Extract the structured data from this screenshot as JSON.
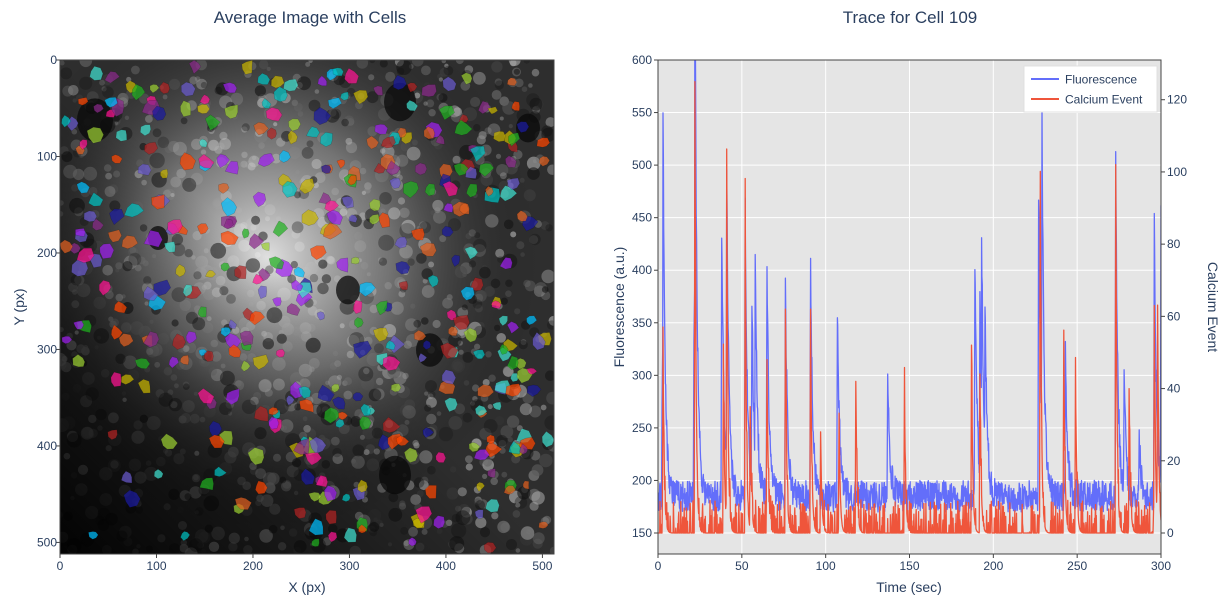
{
  "chart_data": [
    {
      "type": "heatmap",
      "title": "Average Image with Cells",
      "xlabel": "X (px)",
      "ylabel": "Y (px)",
      "xlim": [
        0,
        512
      ],
      "ylim": [
        512,
        0
      ],
      "xticks": [
        0,
        100,
        200,
        300,
        400,
        500
      ],
      "yticks": [
        0,
        100,
        200,
        300,
        400,
        500
      ],
      "colorscale": "grayscale with colored cell ROI overlays",
      "roi_colors": [
        "#a020f0",
        "#00c0c0",
        "#1a1aa0",
        "#ff1493",
        "#20b020",
        "#e06020",
        "#c8b400",
        "#9acd32",
        "#8b2a8b",
        "#b22222",
        "#00bfff",
        "#40e0d0",
        "#6a5acd",
        "#ff4500"
      ]
    },
    {
      "type": "line",
      "title": "Trace for Cell 109",
      "xlabel": "Time (sec)",
      "ylabel": "Fluorescence (a.u.)",
      "y2label": "Calcium Event",
      "xlim": [
        0,
        300
      ],
      "ylim": [
        150,
        600
      ],
      "y2lim": [
        0,
        131
      ],
      "xticks": [
        0,
        50,
        100,
        150,
        200,
        250,
        300
      ],
      "yticks": [
        150,
        200,
        250,
        300,
        350,
        400,
        450,
        500,
        550,
        600
      ],
      "y2ticks": [
        0,
        20,
        40,
        60,
        80,
        100,
        120
      ],
      "grid": true,
      "legend_position": "top-right",
      "series": [
        {
          "name": "Fluorescence",
          "color": "#636efa",
          "axis": "left",
          "baseline": 185,
          "peaks": [
            [
              2.5,
              300
            ],
            [
              3,
              465
            ],
            [
              21.5,
              380
            ],
            [
              22,
              575
            ],
            [
              38,
              440
            ],
            [
              41,
              482
            ],
            [
              52,
              460
            ],
            [
              56,
              365
            ],
            [
              58,
              375
            ],
            [
              65,
              398
            ],
            [
              76,
              385
            ],
            [
              91,
              408
            ],
            [
              107,
              360
            ],
            [
              137,
              310
            ],
            [
              189,
              415
            ],
            [
              192,
              355
            ],
            [
              193,
              350
            ],
            [
              195,
              325
            ],
            [
              227,
              480
            ],
            [
              229,
              490
            ],
            [
              243,
              325
            ],
            [
              273,
              500
            ],
            [
              278,
              290
            ],
            [
              287,
              240
            ],
            [
              296,
              450
            ],
            [
              300,
              460
            ]
          ]
        },
        {
          "name": "Calcium Event",
          "color": "#ef553b",
          "axis": "right",
          "baseline": 0,
          "peaks": [
            [
              3,
              50
            ],
            [
              22,
              125
            ],
            [
              39,
              50
            ],
            [
              41,
              98
            ],
            [
              52,
              90
            ],
            [
              55,
              35
            ],
            [
              65,
              48
            ],
            [
              76,
              62
            ],
            [
              91,
              62
            ],
            [
              97,
              28
            ],
            [
              108,
              32
            ],
            [
              118,
              42
            ],
            [
              147,
              40
            ],
            [
              187,
              52
            ],
            [
              192,
              44
            ],
            [
              228,
              96
            ],
            [
              242,
              54
            ],
            [
              249,
              46
            ],
            [
              273,
              102
            ],
            [
              281,
              40
            ],
            [
              296,
              63
            ],
            [
              298,
              58
            ]
          ]
        }
      ]
    }
  ]
}
